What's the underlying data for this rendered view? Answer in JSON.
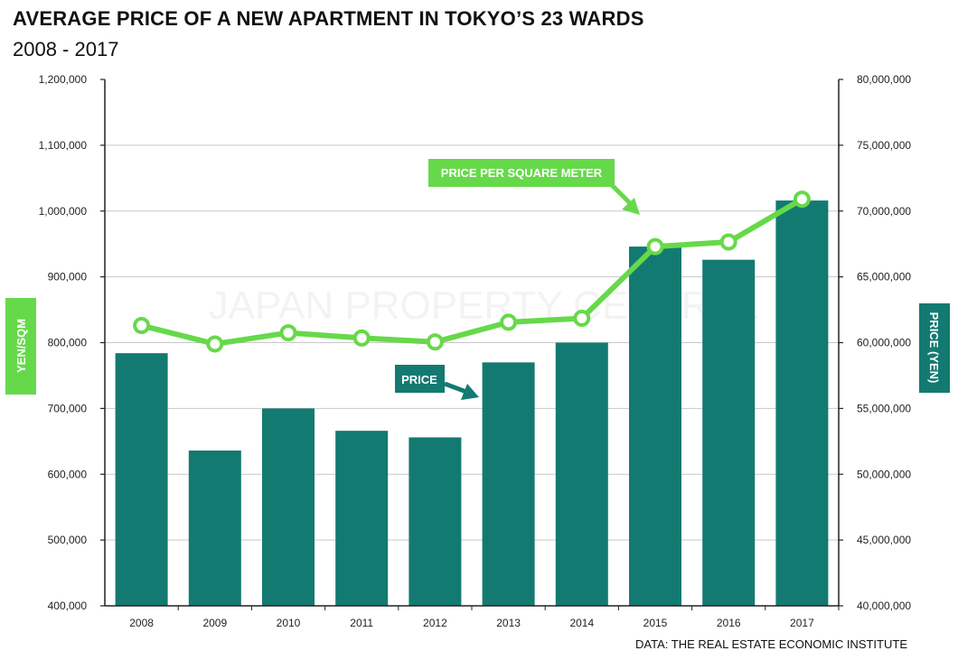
{
  "title": "AVERAGE PRICE OF A NEW APARTMENT IN TOKYO’S 23 WARDS",
  "subtitle": "2008 - 2017",
  "source": "DATA: THE REAL ESTATE ECONOMIC INSTITUTE",
  "watermark": "JAPAN PROPERTY CENTRAL",
  "colors": {
    "bar": "#137a72",
    "line": "#66d94a",
    "axis": "#222222"
  },
  "chart_data": {
    "type": "bar",
    "categories": [
      "2008",
      "2009",
      "2010",
      "2011",
      "2012",
      "2013",
      "2014",
      "2015",
      "2016",
      "2017"
    ],
    "series": [
      {
        "name": "PRICE",
        "axis": "right",
        "type": "bar",
        "values": [
          59200000,
          51800000,
          55000000,
          53300000,
          52800000,
          58500000,
          60000000,
          67300000,
          66300000,
          70800000
        ]
      },
      {
        "name": "PRICE PER SQUARE METER",
        "axis": "left",
        "type": "line",
        "values": [
          826000,
          798000,
          815000,
          807000,
          801000,
          831000,
          837000,
          946000,
          953000,
          1018000
        ]
      }
    ],
    "ylabel_left": "YEN/SQM",
    "ylabel_right": "PRICE (YEN)",
    "ylim_left": [
      400000,
      1200000
    ],
    "ylim_right": [
      40000000,
      80000000
    ],
    "yticks_left": [
      "400,000",
      "500,000",
      "600,000",
      "700,000",
      "800,000",
      "900,000",
      "1,000,000",
      "1,100,000",
      "1,200,000"
    ],
    "yticks_right": [
      "40,000,000",
      "45,000,000",
      "50,000,000",
      "55,000,000",
      "60,000,000",
      "65,000,000",
      "70,000,000",
      "75,000,000",
      "80,000,000"
    ],
    "grid": true,
    "annotations": [
      "PRICE PER SQUARE METER",
      "PRICE"
    ]
  }
}
